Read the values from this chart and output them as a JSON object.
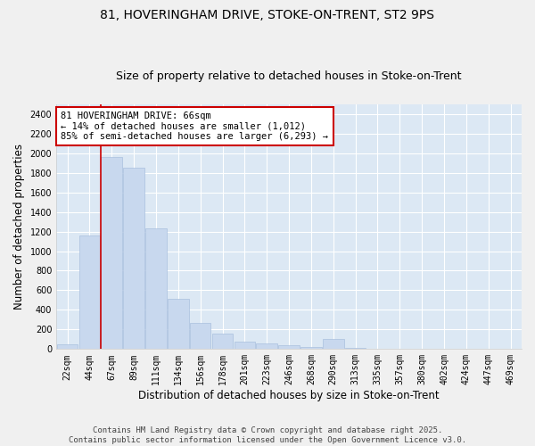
{
  "title_line1": "81, HOVERINGHAM DRIVE, STOKE-ON-TRENT, ST2 9PS",
  "title_line2": "Size of property relative to detached houses in Stoke-on-Trent",
  "xlabel": "Distribution of detached houses by size in Stoke-on-Trent",
  "ylabel": "Number of detached properties",
  "bar_color": "#c8d8ee",
  "bar_edge_color": "#aac0de",
  "background_color": "#dce8f4",
  "grid_color": "#ffffff",
  "categories": [
    "22sqm",
    "44sqm",
    "67sqm",
    "89sqm",
    "111sqm",
    "134sqm",
    "156sqm",
    "178sqm",
    "201sqm",
    "223sqm",
    "246sqm",
    "268sqm",
    "290sqm",
    "313sqm",
    "335sqm",
    "357sqm",
    "380sqm",
    "402sqm",
    "424sqm",
    "447sqm",
    "469sqm"
  ],
  "values": [
    50,
    1160,
    1960,
    1850,
    1230,
    510,
    270,
    160,
    80,
    55,
    35,
    25,
    105,
    8,
    4,
    2,
    1,
    1,
    0,
    0,
    0
  ],
  "ylim": [
    0,
    2500
  ],
  "yticks": [
    0,
    200,
    400,
    600,
    800,
    1000,
    1200,
    1400,
    1600,
    1800,
    2000,
    2200,
    2400
  ],
  "vline_color": "#cc0000",
  "annotation_text": "81 HOVERINGHAM DRIVE: 66sqm\n← 14% of detached houses are smaller (1,012)\n85% of semi-detached houses are larger (6,293) →",
  "annotation_box_color": "#ffffff",
  "annotation_box_edge": "#cc0000",
  "footer_line1": "Contains HM Land Registry data © Crown copyright and database right 2025.",
  "footer_line2": "Contains public sector information licensed under the Open Government Licence v3.0.",
  "title_fontsize": 10,
  "subtitle_fontsize": 9,
  "axis_label_fontsize": 8.5,
  "tick_fontsize": 7,
  "annotation_fontsize": 7.5,
  "footer_fontsize": 6.5
}
